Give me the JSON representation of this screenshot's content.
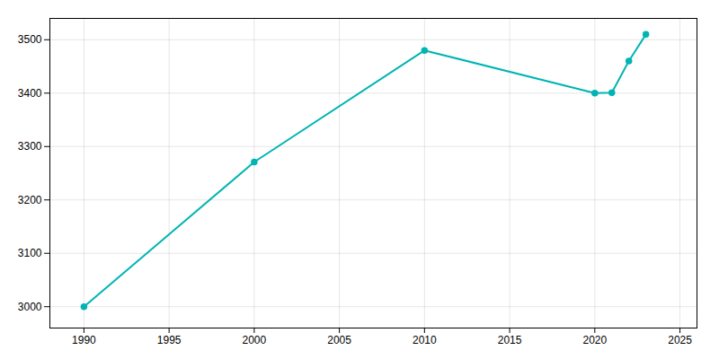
{
  "chart_data": {
    "type": "line",
    "x": [
      1990,
      2000,
      2010,
      2020,
      2021,
      2022,
      2023
    ],
    "values": [
      3000,
      3271,
      3480,
      3400,
      3401,
      3460,
      3510
    ],
    "color": "#00b4b4",
    "marker": "circle",
    "xlim": [
      1988,
      2026
    ],
    "ylim": [
      2960,
      3540
    ],
    "xticks": [
      1990,
      1995,
      2000,
      2005,
      2010,
      2015,
      2020,
      2025
    ],
    "yticks": [
      3000,
      3100,
      3200,
      3300,
      3400,
      3500
    ],
    "grid": true
  }
}
